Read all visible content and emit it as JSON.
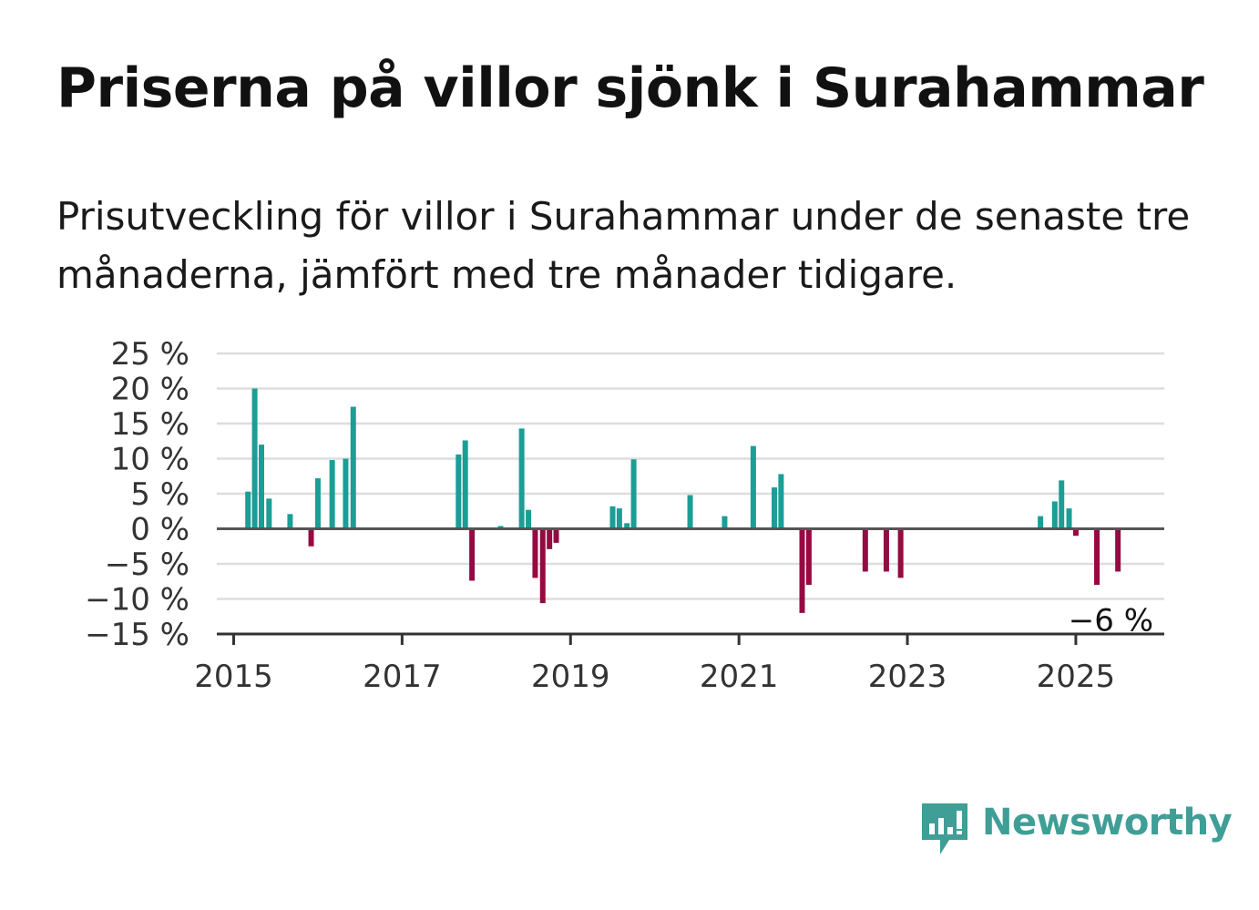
{
  "title": "Priserna på villor sjönk i Surahammar",
  "subtitle": "Prisutveckling för villor i Surahammar under de senaste tre månaderna, jämfört med tre månader tidigare.",
  "brand": "Newsworthy",
  "colors": {
    "positive": "#1a9e96",
    "negative": "#950a42",
    "grid": "#dddddd",
    "axis": "#555555",
    "brand": "#3f9e96"
  },
  "chart_data": {
    "type": "bar",
    "title": "Priserna på villor sjönk i Surahammar",
    "xlabel": "",
    "ylabel": "",
    "ylim": [
      -15,
      25
    ],
    "xlim": [
      2014.8,
      2026.05
    ],
    "yticks": [
      25,
      20,
      15,
      10,
      5,
      0,
      -5,
      -10,
      -15
    ],
    "ytick_labels": [
      "25 %",
      "20 %",
      "15 %",
      "10 %",
      "5 %",
      "0 %",
      "−5 %",
      "−10 %",
      "−15 %"
    ],
    "xticks": [
      2015,
      2017,
      2019,
      2021,
      2023,
      2025
    ],
    "xtick_labels": [
      "2015",
      "2017",
      "2019",
      "2021",
      "2023",
      "2025"
    ],
    "grid": true,
    "annotation": {
      "text": "−6 %",
      "x": 2025.5,
      "y": -6
    },
    "points": [
      {
        "x": 2015.17,
        "y": 5.3
      },
      {
        "x": 2015.25,
        "y": 20.0
      },
      {
        "x": 2015.33,
        "y": 12.0
      },
      {
        "x": 2015.42,
        "y": 4.3
      },
      {
        "x": 2015.67,
        "y": 2.1
      },
      {
        "x": 2015.92,
        "y": -2.5
      },
      {
        "x": 2016.0,
        "y": 7.2
      },
      {
        "x": 2016.17,
        "y": 9.8
      },
      {
        "x": 2016.33,
        "y": 10.0
      },
      {
        "x": 2016.42,
        "y": 17.4
      },
      {
        "x": 2017.67,
        "y": 10.6
      },
      {
        "x": 2017.75,
        "y": 12.6
      },
      {
        "x": 2017.83,
        "y": -7.4
      },
      {
        "x": 2018.17,
        "y": 0.4
      },
      {
        "x": 2018.42,
        "y": 14.3
      },
      {
        "x": 2018.5,
        "y": 2.7
      },
      {
        "x": 2018.58,
        "y": -7.0
      },
      {
        "x": 2018.67,
        "y": -10.6
      },
      {
        "x": 2018.75,
        "y": -2.9
      },
      {
        "x": 2018.83,
        "y": -2.0
      },
      {
        "x": 2019.5,
        "y": 3.2
      },
      {
        "x": 2019.58,
        "y": 2.9
      },
      {
        "x": 2019.67,
        "y": 0.8
      },
      {
        "x": 2019.75,
        "y": 9.9
      },
      {
        "x": 2020.42,
        "y": 4.8
      },
      {
        "x": 2020.83,
        "y": 1.8
      },
      {
        "x": 2021.17,
        "y": 11.8
      },
      {
        "x": 2021.42,
        "y": 5.9
      },
      {
        "x": 2021.5,
        "y": 7.8
      },
      {
        "x": 2021.75,
        "y": -12.0
      },
      {
        "x": 2021.83,
        "y": -8.0
      },
      {
        "x": 2022.5,
        "y": -6.1
      },
      {
        "x": 2022.75,
        "y": -6.1
      },
      {
        "x": 2022.92,
        "y": -7.0
      },
      {
        "x": 2024.58,
        "y": 1.8
      },
      {
        "x": 2024.75,
        "y": 3.9
      },
      {
        "x": 2024.83,
        "y": 6.9
      },
      {
        "x": 2024.92,
        "y": 2.9
      },
      {
        "x": 2025.0,
        "y": -1.0
      },
      {
        "x": 2025.25,
        "y": -8.0
      },
      {
        "x": 2025.5,
        "y": -6.1
      }
    ]
  }
}
